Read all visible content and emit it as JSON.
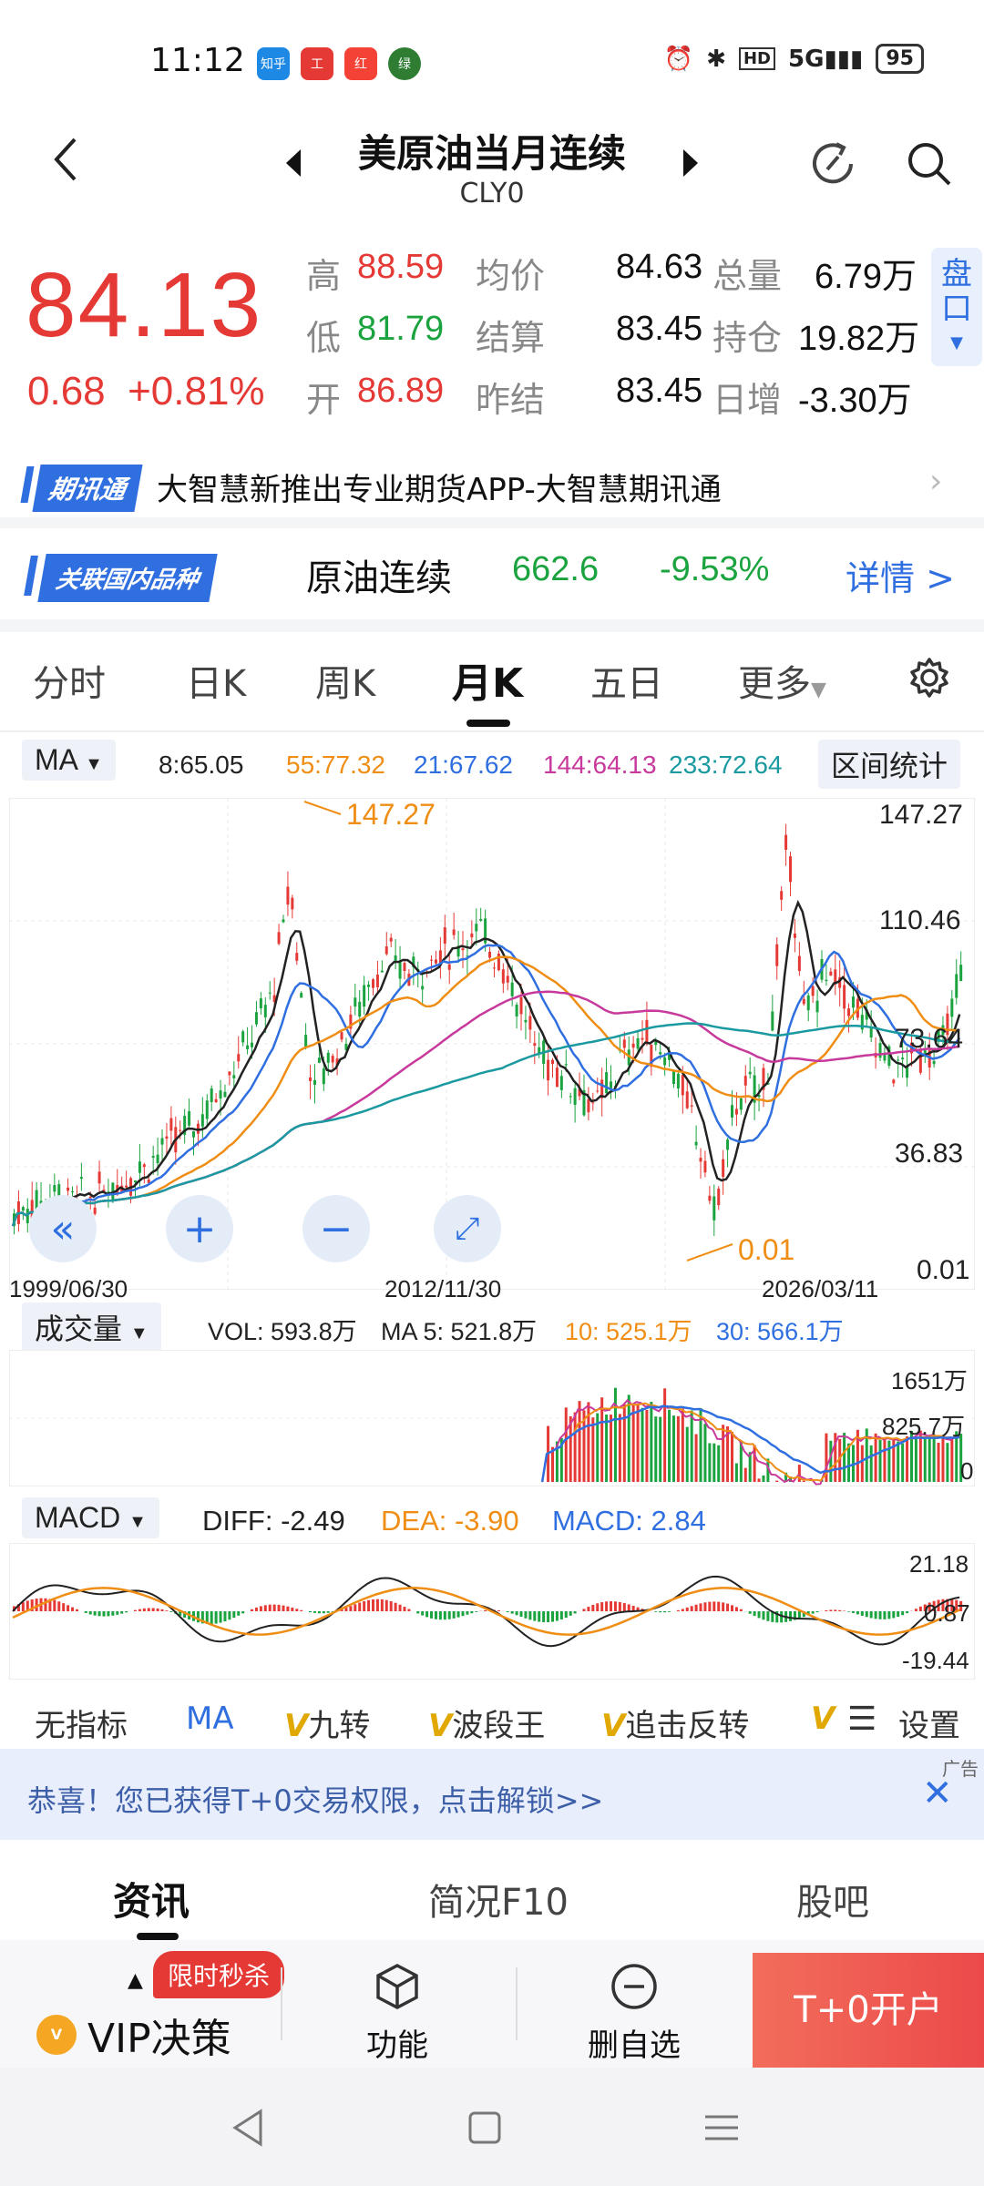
{
  "status_bar": {
    "time": "11:12",
    "apps": [
      "知乎",
      "工",
      "红",
      "绿"
    ],
    "signal": "5G",
    "battery": "95"
  },
  "header": {
    "title": "美原油当月连续",
    "code": "CLY0"
  },
  "quote": {
    "price": "84.13",
    "change": "0.68",
    "change_pct": "+0.81%",
    "high_label": "高",
    "high": "88.59",
    "low_label": "低",
    "low": "81.79",
    "open_label": "开",
    "open": "86.89",
    "avg_label": "均价",
    "avg": "84.63",
    "settle_label": "结算",
    "settle": "83.45",
    "prev_settle_label": "昨结",
    "prev_settle": "83.45",
    "vol_label": "总量",
    "vol": "6.79万",
    "oi_label": "持仓",
    "oi": "19.82万",
    "oi_chg_label": "日增",
    "oi_chg": "-3.30万",
    "pankou": "盘口"
  },
  "news": {
    "tag": "期讯通",
    "text": "大智慧新推出专业期货APP-大智慧期讯通"
  },
  "related": {
    "tag": "关联国内品种",
    "name": "原油连续",
    "price": "662.6",
    "change": "-9.53%",
    "detail": "详情 >"
  },
  "chart_tabs": [
    "分时",
    "日K",
    "周K",
    "月K",
    "五日",
    "更多"
  ],
  "active_tab": "月K",
  "ma": {
    "button": "MA",
    "ma8": "8:65.05",
    "ma55": "55:77.32",
    "ma21": "21:67.62",
    "ma144": "144:64.13",
    "ma233": "233:72.64",
    "range_btn": "区间统计"
  },
  "kline": {
    "yticks": [
      "147.27",
      "110.46",
      "73.64",
      "36.83",
      "0.01"
    ],
    "max_label": "147.27",
    "min_label": "0.01",
    "dates": [
      "1999/06/30",
      "2012/11/30",
      "2026/03/11"
    ]
  },
  "volume": {
    "button": "成交量",
    "vol": "VOL: 593.8万",
    "ma5": "MA 5: 521.8万",
    "ma10": "10: 525.1万",
    "ma30": "30: 566.1万",
    "yticks": [
      "1651万",
      "825.7万",
      "0"
    ]
  },
  "macd": {
    "button": "MACD",
    "diff": "DIFF: -2.49",
    "dea": "DEA: -3.90",
    "macd": "MACD: 2.84",
    "yticks": [
      "21.18",
      "0.87",
      "-19.44"
    ]
  },
  "indicator_tabs": [
    "无指标",
    "MA",
    "九转",
    "波段王",
    "追击反转"
  ],
  "settings_label": "设置",
  "ad": {
    "tag": "广告",
    "text": "恭喜！您已获得T+0交易权限，点击解锁>>"
  },
  "bottom_tabs": [
    "资讯",
    "简况F10",
    "股吧"
  ],
  "footer": {
    "promo": "限时秒杀",
    "vip": "VIP决策",
    "func": "功能",
    "delete": "删自选",
    "open": "T+0开户"
  },
  "colors": {
    "red": "#e53935",
    "green": "#1aa33e",
    "blue": "#2f6fe0",
    "orange": "#ef8d14",
    "magenta": "#c8399c",
    "teal": "#1a9aa0"
  }
}
